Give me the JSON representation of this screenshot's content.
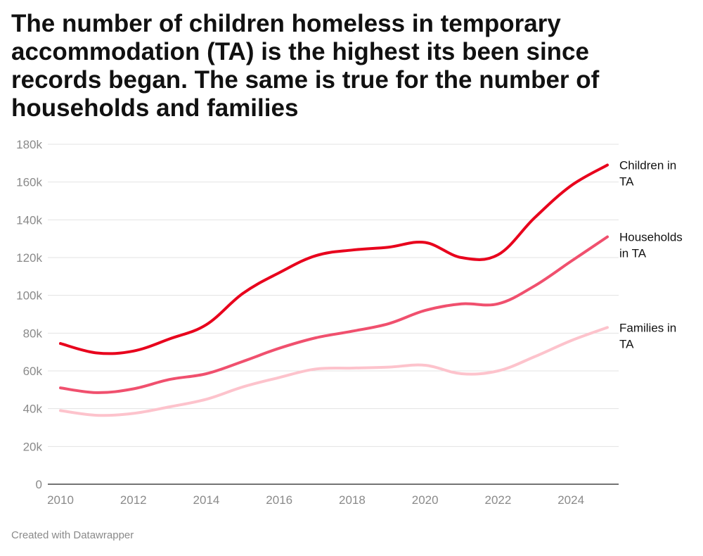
{
  "footer": "Created with Datawrapper",
  "chart_data": {
    "type": "line",
    "title": "The number of children homeless in temporary accommodation (TA) is the highest its been since records began. The same is true for the number of households and families",
    "xlabel": "",
    "ylabel": "",
    "x": [
      2010,
      2011,
      2012,
      2013,
      2014,
      2015,
      2016,
      2017,
      2018,
      2019,
      2020,
      2021,
      2022,
      2023,
      2024,
      2025
    ],
    "xlim": [
      2010,
      2025
    ],
    "ylim": [
      0,
      180000
    ],
    "x_ticks": [
      2010,
      2012,
      2014,
      2016,
      2018,
      2020,
      2022,
      2024
    ],
    "x_tick_labels": [
      "2010",
      "2012",
      "2014",
      "2016",
      "2018",
      "2020",
      "2022",
      "2024"
    ],
    "y_ticks": [
      0,
      20000,
      40000,
      60000,
      80000,
      100000,
      120000,
      140000,
      160000,
      180000
    ],
    "y_tick_labels": [
      "0",
      "20k",
      "40k",
      "60k",
      "80k",
      "100k",
      "120k",
      "140k",
      "160k",
      "180k"
    ],
    "grid": true,
    "legend": "inline-right",
    "series": [
      {
        "name": "Children in TA",
        "label_lines": [
          "Children in",
          "TA"
        ],
        "color": "#e8001c",
        "values": [
          74500,
          69500,
          70500,
          77000,
          84500,
          101000,
          112000,
          121000,
          124000,
          125500,
          128000,
          120000,
          121500,
          141000,
          158000,
          169000
        ]
      },
      {
        "name": "Households in TA",
        "label_lines": [
          "Households",
          "in TA"
        ],
        "color": "#f0506e",
        "values": [
          51000,
          48500,
          50500,
          55500,
          58500,
          65000,
          72000,
          77500,
          81000,
          85000,
          92000,
          95500,
          95500,
          105000,
          118000,
          131000
        ]
      },
      {
        "name": "Families in TA",
        "label_lines": [
          "Families in",
          "TA"
        ],
        "color": "#fdc3cc",
        "values": [
          39000,
          36500,
          37500,
          41000,
          45000,
          51500,
          56500,
          61000,
          61500,
          62000,
          63000,
          58500,
          60000,
          67500,
          76000,
          83000
        ]
      }
    ]
  }
}
